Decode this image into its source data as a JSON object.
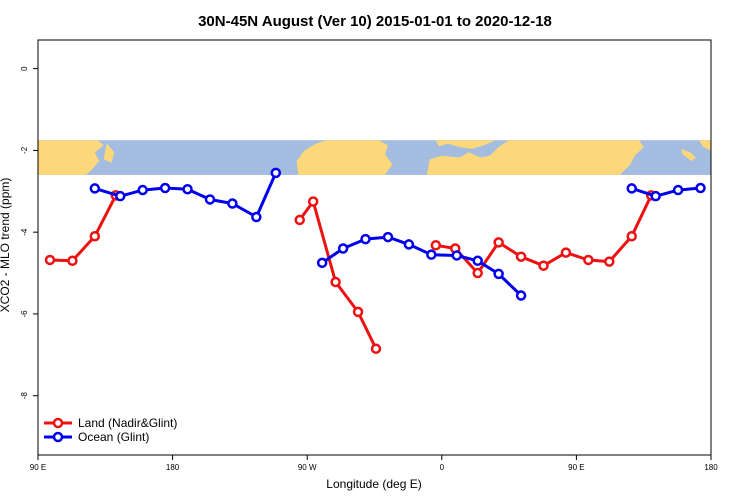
{
  "chart_data": {
    "type": "line",
    "title": "30N-45N August (Ver 10)   2015-01-01 to 2020-12-18",
    "xlabel": "Longitude (deg E)",
    "ylabel": "XCO2 - MLO trend (ppm)",
    "xlim": [
      90,
      540
    ],
    "ylim": [
      -9.45,
      0.7
    ],
    "x_ticks": [
      {
        "value": 90,
        "label": "90 E"
      },
      {
        "value": 180,
        "label": "180"
      },
      {
        "value": 270,
        "label": "90 W"
      },
      {
        "value": 360,
        "label": "0"
      },
      {
        "value": 450,
        "label": "90 E"
      },
      {
        "value": 540,
        "label": "180"
      }
    ],
    "y_ticks": [
      {
        "value": 0,
        "label": "0"
      },
      {
        "value": -2,
        "label": "-2"
      },
      {
        "value": -4,
        "label": "-4"
      },
      {
        "value": -6,
        "label": "-6"
      },
      {
        "value": -8,
        "label": "-8"
      }
    ],
    "legend_position": "bottom-left",
    "map_band": {
      "y_top": -1.75,
      "y_bottom": -2.6,
      "ocean_color": "#a4bcdf",
      "land_color": "#fdd87a"
    },
    "series": [
      {
        "name": "Land (Nadir&Glint)",
        "color": "#ee1111",
        "segments": [
          [
            [
              98,
              -4.68
            ],
            [
              113,
              -4.7
            ],
            [
              128,
              -4.1
            ],
            [
              142,
              -3.1
            ]
          ],
          [
            [
              265,
              -3.7
            ],
            [
              274,
              -3.25
            ],
            [
              289,
              -5.22
            ],
            [
              304,
              -5.95
            ],
            [
              316,
              -6.85
            ]
          ],
          [
            [
              356,
              -4.32
            ],
            [
              369,
              -4.4
            ],
            [
              384,
              -5.0
            ],
            [
              398,
              -4.25
            ],
            [
              413,
              -4.6
            ],
            [
              428,
              -4.82
            ],
            [
              443,
              -4.5
            ],
            [
              458,
              -4.68
            ],
            [
              472,
              -4.72
            ],
            [
              487,
              -4.1
            ],
            [
              500,
              -3.1
            ]
          ]
        ]
      },
      {
        "name": "Ocean (Glint)",
        "color": "#0000ee",
        "segments": [
          [
            [
              128,
              -2.93
            ],
            [
              145,
              -3.12
            ],
            [
              160,
              -2.97
            ],
            [
              175,
              -2.92
            ],
            [
              190,
              -2.95
            ],
            [
              205,
              -3.2
            ],
            [
              220,
              -3.3
            ],
            [
              236,
              -3.63
            ],
            [
              249,
              -2.55
            ]
          ],
          [
            [
              280,
              -4.75
            ],
            [
              294,
              -4.4
            ],
            [
              309,
              -4.17
            ],
            [
              324,
              -4.12
            ],
            [
              338,
              -4.3
            ],
            [
              353,
              -4.55
            ],
            [
              370,
              -4.57
            ],
            [
              384,
              -4.7
            ],
            [
              398,
              -5.02
            ],
            [
              413,
              -5.55
            ]
          ]
        ],
        "wrap_segment": [
          [
            487,
            -2.93
          ],
          [
            503,
            -3.12
          ],
          [
            518,
            -2.97
          ],
          [
            533,
            -2.92
          ]
        ]
      }
    ]
  }
}
